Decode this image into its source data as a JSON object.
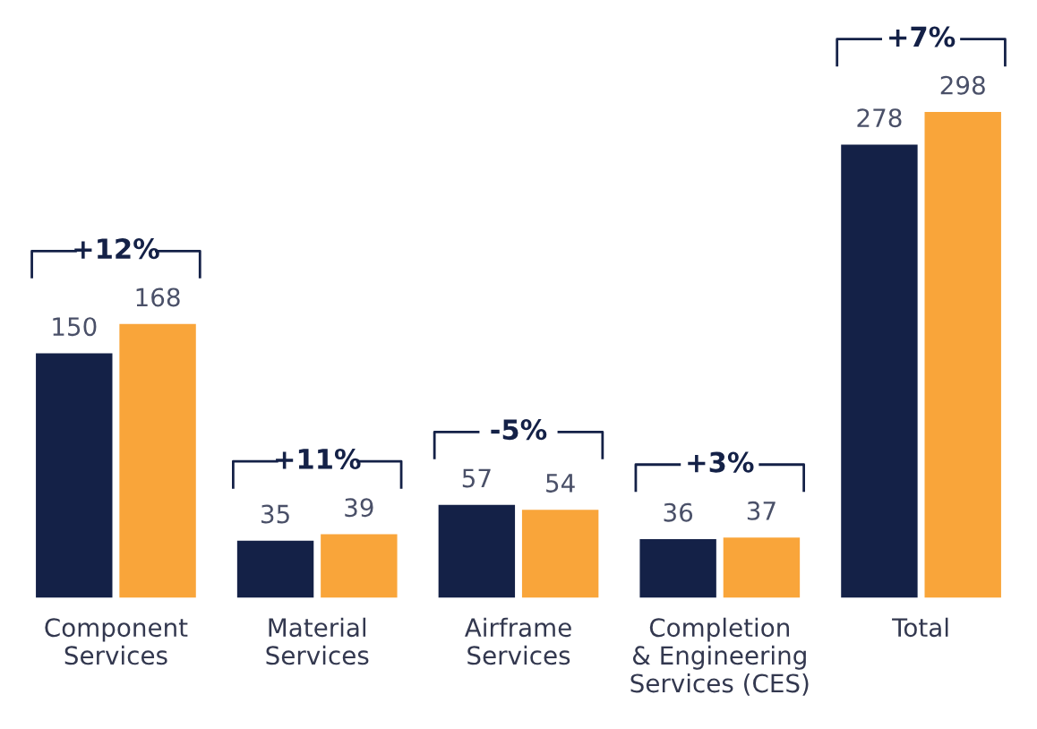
{
  "chart_data": {
    "type": "bar",
    "categories": [
      "Component\nServices",
      "Material\nServices",
      "Airframe\nServices",
      "Completion\n& Engineering\nServices (CES)",
      "Total"
    ],
    "series": [
      {
        "color": "#142147",
        "values": [
          150,
          35,
          57,
          36,
          278
        ]
      },
      {
        "color": "#f9a53a",
        "values": [
          168,
          39,
          54,
          37,
          298
        ]
      }
    ],
    "data_labels": true,
    "annotations": [
      "+12%",
      "+11%",
      "-5%",
      "+3%",
      "+7%"
    ],
    "grid": false
  }
}
